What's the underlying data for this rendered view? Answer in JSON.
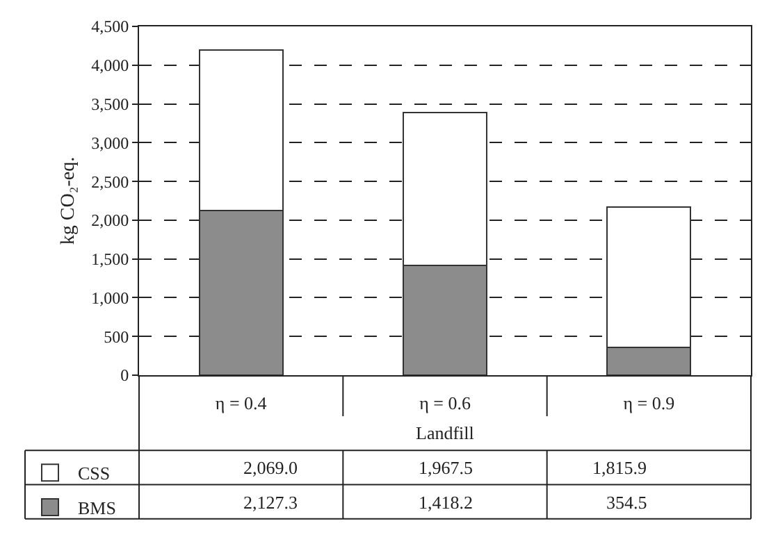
{
  "chart_data": {
    "type": "bar",
    "stacked": true,
    "xlabel": "Landfill",
    "ylabel": "kg CO₂-eq.",
    "categories": [
      "η = 0.4",
      "η = 0.6",
      "η = 0.9"
    ],
    "series": [
      {
        "name": "BMS",
        "color": "#8c8c8c",
        "values": [
          2127.3,
          1418.2,
          354.5
        ],
        "value_labels": [
          "2,127.3",
          "1,418.2",
          "354.5"
        ]
      },
      {
        "name": "CSS",
        "color": "#ffffff",
        "values": [
          2069.0,
          1967.5,
          1815.9
        ],
        "value_labels": [
          "2,069.0",
          "1,967.5",
          "1,815.9"
        ]
      }
    ],
    "ylim": [
      0,
      4500
    ],
    "yticks": [
      0,
      {
        "value": 500,
        "label": "500"
      },
      {
        "value": 1000,
        "label": "1,000"
      },
      {
        "value": 1500,
        "label": "1,500"
      },
      {
        "value": 2000,
        "label": "2,000"
      },
      {
        "value": 2500,
        "label": "2,500"
      },
      {
        "value": 3000,
        "label": "3,000"
      },
      {
        "value": 3500,
        "label": "3,500"
      },
      {
        "value": 4000,
        "label": "4,000"
      },
      {
        "value": 4500,
        "label": "4,500"
      }
    ],
    "grid": "y",
    "legend": "bottom"
  }
}
